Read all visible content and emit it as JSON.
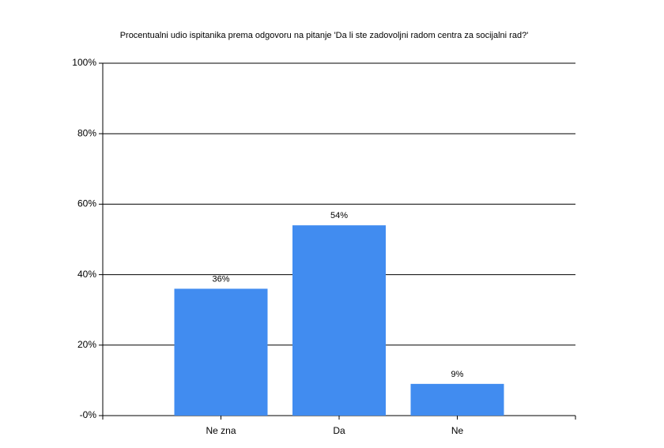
{
  "chart_data": {
    "type": "bar",
    "title": "Procentualni udio ispitanika prema odgovoru na pitanje 'Da li ste zadovoljni radom centra za socijalni rad?'",
    "categories": [
      "Ne zna",
      "Da",
      "Ne"
    ],
    "values": [
      36,
      54,
      9
    ],
    "value_labels": [
      "36%",
      "54%",
      "9%"
    ],
    "color": "#418cf0",
    "ylim": [
      0,
      100
    ],
    "yticks": [
      {
        "value": 0,
        "label": "-0%"
      },
      {
        "value": 20,
        "label": "20%"
      },
      {
        "value": 40,
        "label": "40%"
      },
      {
        "value": 60,
        "label": "60%"
      },
      {
        "value": 80,
        "label": "80%"
      },
      {
        "value": 100,
        "label": "100%"
      }
    ],
    "grid": true
  }
}
